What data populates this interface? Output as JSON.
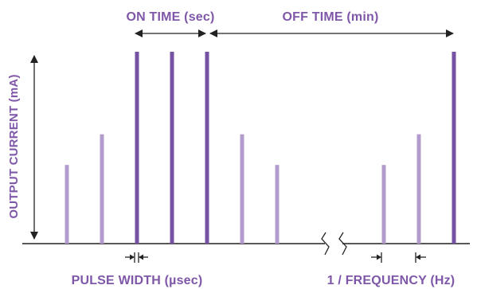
{
  "labels": {
    "on_time": "ON TIME (sec)",
    "off_time": "OFF TIME (min)",
    "output_current": "OUTPUT CURRENT (mA)",
    "pulse_width": "PULSE WIDTH (µsec)",
    "frequency": "1 / FREQUENCY (Hz)"
  },
  "colors": {
    "light_pulse": "#b39ccd",
    "dark_pulse": "#7552a3",
    "label": "#7e57a8",
    "line": "#222222"
  },
  "pulses": [
    {
      "amplitude": 0.41,
      "tone": "light"
    },
    {
      "amplitude": 0.57,
      "tone": "light"
    },
    {
      "amplitude": 1.0,
      "tone": "dark"
    },
    {
      "amplitude": 1.0,
      "tone": "dark"
    },
    {
      "amplitude": 1.0,
      "tone": "dark"
    },
    {
      "amplitude": 0.57,
      "tone": "light"
    },
    {
      "amplitude": 0.41,
      "tone": "light"
    },
    {
      "amplitude": 0.41,
      "tone": "light"
    },
    {
      "amplitude": 0.57,
      "tone": "light"
    },
    {
      "amplitude": 1.0,
      "tone": "dark"
    }
  ]
}
